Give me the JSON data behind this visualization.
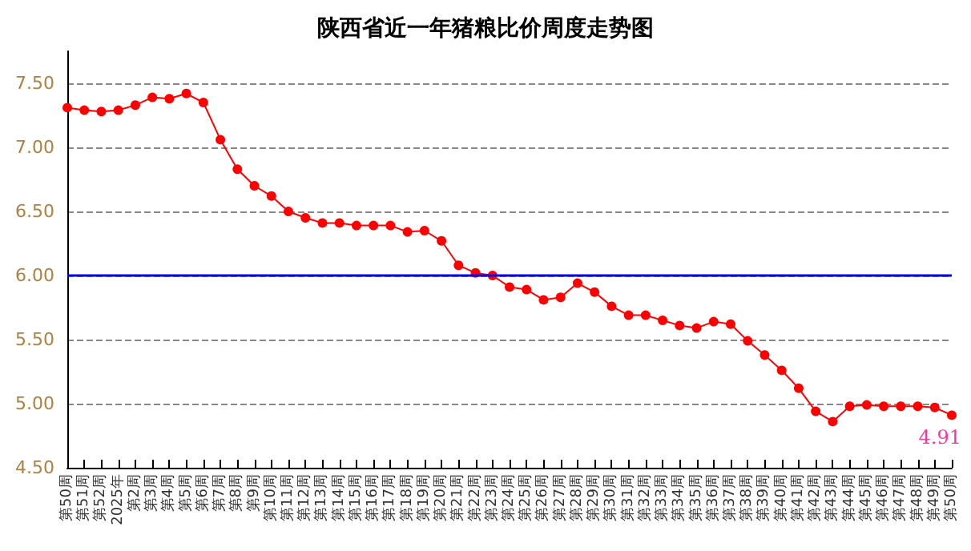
{
  "chart_data": {
    "type": "line",
    "title": "陕西省近一年猪粮比价周度走势图",
    "categories": [
      "第50周",
      "第51周",
      "第52周",
      "2025年",
      "第2周",
      "第3周",
      "第4周",
      "第5周",
      "第6周",
      "第7周",
      "第8周",
      "第9周",
      "第10周",
      "第11周",
      "第12周",
      "第13周",
      "第14周",
      "第15周",
      "第16周",
      "第17周",
      "第18周",
      "第19周",
      "第20周",
      "第21周",
      "第22周",
      "第23周",
      "第24周",
      "第25周",
      "第26周",
      "第27周",
      "第28周",
      "第29周",
      "第30周",
      "第31周",
      "第32周",
      "第33周",
      "第34周",
      "第35周",
      "第36周",
      "第37周",
      "第38周",
      "第39周",
      "第40周",
      "第41周",
      "第42周",
      "第43周",
      "第44周",
      "第45周",
      "第46周",
      "第47周",
      "第48周",
      "第49周",
      "第50周"
    ],
    "series": [
      {
        "color": "#ff0000",
        "values": [
          7.31,
          7.29,
          7.28,
          7.29,
          7.33,
          7.39,
          7.38,
          7.42,
          7.35,
          7.06,
          6.83,
          6.7,
          6.62,
          6.5,
          6.45,
          6.41,
          6.41,
          6.39,
          6.39,
          6.39,
          6.34,
          6.35,
          6.27,
          6.08,
          6.02,
          6.0,
          5.91,
          5.89,
          5.81,
          5.83,
          5.94,
          5.87,
          5.76,
          5.69,
          5.69,
          5.65,
          5.61,
          5.59,
          5.64,
          5.62,
          5.49,
          5.38,
          5.26,
          5.12,
          4.94,
          4.86,
          4.98,
          4.99,
          4.98,
          4.98,
          4.98,
          4.97,
          4.91
        ],
        "value_labels": [
          null,
          null,
          null,
          null,
          null,
          null,
          null,
          null,
          null,
          null,
          null,
          null,
          null,
          null,
          null,
          null,
          null,
          null,
          null,
          null,
          null,
          null,
          null,
          null,
          null,
          null,
          null,
          null,
          null,
          null,
          null,
          null,
          null,
          null,
          null,
          null,
          null,
          null,
          null,
          null,
          null,
          null,
          null,
          null,
          null,
          null,
          null,
          null,
          null,
          null,
          null,
          null,
          "4.91"
        ]
      }
    ],
    "ylim": [
      4.5,
      7.75
    ],
    "yticks": [
      {
        "value": 4.5,
        "label": "4.50"
      },
      {
        "value": 5,
        "label": "5.00"
      },
      {
        "value": 5.5,
        "label": "5.50"
      },
      {
        "value": 6,
        "label": "6.00"
      },
      {
        "value": 6.5,
        "label": "6.50"
      },
      {
        "value": 7,
        "label": "7.00"
      },
      {
        "value": 7.5,
        "label": "7.50"
      }
    ],
    "ref_lines": [
      {
        "axis": "y",
        "value": 6,
        "color": "#0000ff"
      }
    ],
    "grid": "y",
    "marker": "circle",
    "line_style": "solid"
  }
}
